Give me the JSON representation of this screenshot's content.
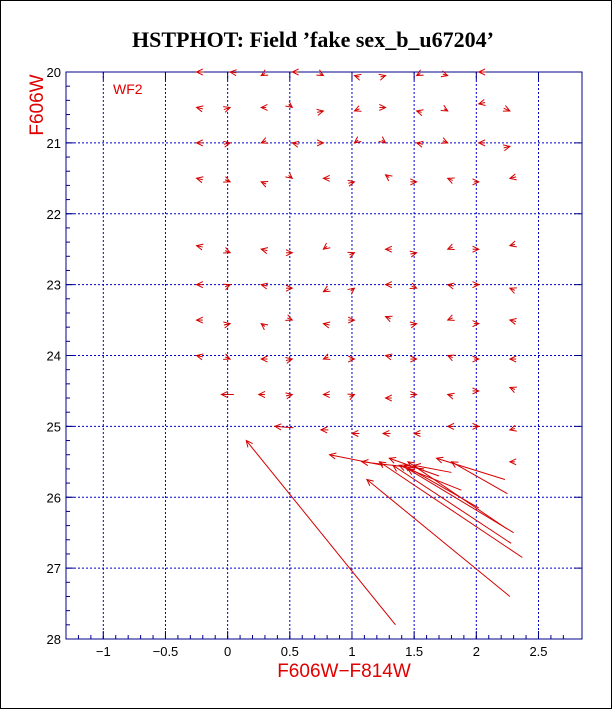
{
  "chart_data": {
    "type": "quiver",
    "title": "HSTPHOT: Field ’fake sex_b_u67204’",
    "xlabel": "F606W−F814W",
    "ylabel": "F606W",
    "panel_label": "WF2",
    "xlim": [
      -1.3,
      2.85
    ],
    "ylim": [
      28,
      20
    ],
    "y_inverted": true,
    "grid": true,
    "xticks": [
      -1,
      -0.5,
      0,
      0.5,
      1,
      1.5,
      2,
      2.5
    ],
    "xtick_labels": [
      "−1",
      "−0.5",
      "0",
      "0.5",
      "1",
      "1.5",
      "2",
      "2.5"
    ],
    "yticks": [
      20,
      21,
      22,
      23,
      24,
      25,
      26,
      27,
      28
    ],
    "ytick_labels": [
      "20",
      "21",
      "22",
      "23",
      "24",
      "25",
      "26",
      "27",
      "28"
    ],
    "colors": {
      "axes": "#00008b",
      "grid": "#0000cd",
      "labels": "#e00000",
      "vectors": "#d40000",
      "ticks": "#000000"
    },
    "vectors": [
      {
        "x": -0.25,
        "y": 20.0,
        "dx": 0.06,
        "dy": 0.0
      },
      {
        "x": 0.02,
        "y": 20.0,
        "dx": 0.05,
        "dy": 0.01
      },
      {
        "x": 0.27,
        "y": 20.05,
        "dx": 0.03,
        "dy": -0.03
      },
      {
        "x": 0.52,
        "y": 20.0,
        "dx": 0.05,
        "dy": 0.0
      },
      {
        "x": 0.77,
        "y": 20.05,
        "dx": -0.03,
        "dy": -0.03
      },
      {
        "x": 1.02,
        "y": 20.05,
        "dx": 0.04,
        "dy": 0.02
      },
      {
        "x": 1.27,
        "y": 20.05,
        "dx": -0.04,
        "dy": 0.02
      },
      {
        "x": 1.52,
        "y": 20.05,
        "dx": 0.03,
        "dy": -0.03
      },
      {
        "x": 1.77,
        "y": 20.05,
        "dx": -0.04,
        "dy": -0.02
      },
      {
        "x": 2.02,
        "y": 20.0,
        "dx": 0.06,
        "dy": 0.0
      },
      {
        "x": -0.25,
        "y": 20.5,
        "dx": 0.05,
        "dy": 0.02
      },
      {
        "x": 0.02,
        "y": 20.5,
        "dx": -0.05,
        "dy": 0.03
      },
      {
        "x": 0.27,
        "y": 20.5,
        "dx": 0.04,
        "dy": 0.0
      },
      {
        "x": 0.52,
        "y": 20.5,
        "dx": -0.03,
        "dy": -0.04
      },
      {
        "x": 0.77,
        "y": 20.55,
        "dx": -0.05,
        "dy": 0.02
      },
      {
        "x": 1.02,
        "y": 20.55,
        "dx": 0.04,
        "dy": -0.03
      },
      {
        "x": 1.27,
        "y": 20.5,
        "dx": -0.05,
        "dy": 0.0
      },
      {
        "x": 1.52,
        "y": 20.55,
        "dx": 0.04,
        "dy": 0.02
      },
      {
        "x": 1.77,
        "y": 20.55,
        "dx": -0.03,
        "dy": -0.03
      },
      {
        "x": 2.02,
        "y": 20.45,
        "dx": 0.05,
        "dy": -0.02
      },
      {
        "x": 2.27,
        "y": 20.55,
        "dx": -0.05,
        "dy": -0.04
      },
      {
        "x": -0.25,
        "y": 21.0,
        "dx": 0.05,
        "dy": 0.0
      },
      {
        "x": 0.02,
        "y": 21.0,
        "dx": -0.05,
        "dy": 0.02
      },
      {
        "x": 0.27,
        "y": 21.0,
        "dx": 0.04,
        "dy": -0.03
      },
      {
        "x": 0.52,
        "y": 21.0,
        "dx": 0.05,
        "dy": 0.02
      },
      {
        "x": 0.77,
        "y": 21.0,
        "dx": -0.05,
        "dy": 0.0
      },
      {
        "x": 1.02,
        "y": 21.0,
        "dx": 0.03,
        "dy": -0.04
      },
      {
        "x": 1.27,
        "y": 21.0,
        "dx": -0.03,
        "dy": -0.04
      },
      {
        "x": 1.52,
        "y": 21.0,
        "dx": 0.05,
        "dy": 0.02
      },
      {
        "x": 1.77,
        "y": 21.0,
        "dx": -0.04,
        "dy": -0.03
      },
      {
        "x": 2.02,
        "y": 21.0,
        "dx": 0.05,
        "dy": 0.0
      },
      {
        "x": 2.27,
        "y": 21.05,
        "dx": -0.05,
        "dy": 0.02
      },
      {
        "x": -0.25,
        "y": 21.5,
        "dx": 0.05,
        "dy": 0.02
      },
      {
        "x": 0.02,
        "y": 21.55,
        "dx": -0.04,
        "dy": -0.03
      },
      {
        "x": 0.27,
        "y": 21.55,
        "dx": 0.04,
        "dy": 0.03
      },
      {
        "x": 0.52,
        "y": 21.5,
        "dx": -0.03,
        "dy": -0.04
      },
      {
        "x": 0.77,
        "y": 21.5,
        "dx": 0.05,
        "dy": 0.0
      },
      {
        "x": 1.02,
        "y": 21.55,
        "dx": -0.05,
        "dy": 0.02
      },
      {
        "x": 1.27,
        "y": 21.45,
        "dx": 0.03,
        "dy": 0.04
      },
      {
        "x": 1.52,
        "y": 21.55,
        "dx": -0.05,
        "dy": 0.0
      },
      {
        "x": 1.77,
        "y": 21.5,
        "dx": 0.04,
        "dy": 0.03
      },
      {
        "x": 2.02,
        "y": 21.55,
        "dx": -0.04,
        "dy": 0.0
      },
      {
        "x": 2.27,
        "y": 21.5,
        "dx": 0.05,
        "dy": -0.02
      },
      {
        "x": -0.25,
        "y": 22.45,
        "dx": 0.05,
        "dy": 0.02
      },
      {
        "x": 0.02,
        "y": 22.55,
        "dx": -0.04,
        "dy": -0.03
      },
      {
        "x": 0.27,
        "y": 22.5,
        "dx": 0.05,
        "dy": 0.02
      },
      {
        "x": 0.52,
        "y": 22.55,
        "dx": -0.05,
        "dy": 0.0
      },
      {
        "x": 0.77,
        "y": 22.5,
        "dx": 0.03,
        "dy": -0.04
      },
      {
        "x": 1.02,
        "y": 22.55,
        "dx": -0.04,
        "dy": 0.03
      },
      {
        "x": 1.27,
        "y": 22.5,
        "dx": 0.05,
        "dy": 0.0
      },
      {
        "x": 1.52,
        "y": 22.55,
        "dx": -0.05,
        "dy": 0.02
      },
      {
        "x": 1.77,
        "y": 22.5,
        "dx": 0.04,
        "dy": -0.03
      },
      {
        "x": 2.02,
        "y": 22.5,
        "dx": -0.05,
        "dy": 0.0
      },
      {
        "x": 2.27,
        "y": 22.45,
        "dx": 0.04,
        "dy": -0.02
      },
      {
        "x": -0.25,
        "y": 23.0,
        "dx": 0.05,
        "dy": 0.0
      },
      {
        "x": 0.02,
        "y": 23.0,
        "dx": -0.04,
        "dy": 0.03
      },
      {
        "x": 0.27,
        "y": 23.0,
        "dx": 0.05,
        "dy": 0.02
      },
      {
        "x": 0.52,
        "y": 23.05,
        "dx": -0.05,
        "dy": 0.0
      },
      {
        "x": 0.77,
        "y": 23.1,
        "dx": 0.04,
        "dy": -0.04
      },
      {
        "x": 1.02,
        "y": 23.05,
        "dx": -0.03,
        "dy": 0.04
      },
      {
        "x": 1.27,
        "y": 23.0,
        "dx": 0.05,
        "dy": 0.0
      },
      {
        "x": 1.52,
        "y": 23.05,
        "dx": -0.04,
        "dy": -0.03
      },
      {
        "x": 1.77,
        "y": 23.0,
        "dx": 0.05,
        "dy": 0.02
      },
      {
        "x": 2.02,
        "y": 23.0,
        "dx": -0.04,
        "dy": 0.0
      },
      {
        "x": 2.27,
        "y": 23.05,
        "dx": 0.04,
        "dy": 0.03
      },
      {
        "x": -0.25,
        "y": 23.5,
        "dx": 0.05,
        "dy": 0.0
      },
      {
        "x": 0.02,
        "y": 23.55,
        "dx": -0.05,
        "dy": 0.02
      },
      {
        "x": 0.27,
        "y": 23.55,
        "dx": 0.03,
        "dy": 0.04
      },
      {
        "x": 0.52,
        "y": 23.5,
        "dx": -0.04,
        "dy": -0.03
      },
      {
        "x": 0.77,
        "y": 23.55,
        "dx": 0.05,
        "dy": 0.02
      },
      {
        "x": 1.02,
        "y": 23.5,
        "dx": -0.05,
        "dy": 0.0
      },
      {
        "x": 1.27,
        "y": 23.45,
        "dx": 0.04,
        "dy": 0.03
      },
      {
        "x": 1.52,
        "y": 23.55,
        "dx": -0.05,
        "dy": 0.02
      },
      {
        "x": 1.77,
        "y": 23.5,
        "dx": 0.04,
        "dy": -0.03
      },
      {
        "x": 2.02,
        "y": 23.55,
        "dx": -0.04,
        "dy": 0.0
      },
      {
        "x": 2.27,
        "y": 23.5,
        "dx": 0.05,
        "dy": 0.02
      },
      {
        "x": -0.25,
        "y": 24.0,
        "dx": 0.05,
        "dy": 0.02
      },
      {
        "x": 0.02,
        "y": 24.05,
        "dx": -0.04,
        "dy": -0.03
      },
      {
        "x": 0.27,
        "y": 24.05,
        "dx": 0.05,
        "dy": 0.0
      },
      {
        "x": 0.52,
        "y": 24.05,
        "dx": -0.05,
        "dy": 0.02
      },
      {
        "x": 0.77,
        "y": 24.05,
        "dx": 0.04,
        "dy": -0.03
      },
      {
        "x": 1.02,
        "y": 24.05,
        "dx": -0.04,
        "dy": 0.0
      },
      {
        "x": 1.27,
        "y": 24.0,
        "dx": 0.05,
        "dy": 0.02
      },
      {
        "x": 1.52,
        "y": 24.05,
        "dx": -0.05,
        "dy": 0.0
      },
      {
        "x": 1.77,
        "y": 24.0,
        "dx": 0.04,
        "dy": 0.03
      },
      {
        "x": 2.02,
        "y": 24.05,
        "dx": -0.04,
        "dy": 0.0
      },
      {
        "x": 2.27,
        "y": 24.05,
        "dx": 0.05,
        "dy": 0.0
      },
      {
        "x": -0.05,
        "y": 24.55,
        "dx": 0.1,
        "dy": 0.0
      },
      {
        "x": 0.25,
        "y": 24.55,
        "dx": 0.05,
        "dy": 0.0
      },
      {
        "x": 0.52,
        "y": 24.55,
        "dx": -0.05,
        "dy": 0.02
      },
      {
        "x": 0.77,
        "y": 24.55,
        "dx": 0.05,
        "dy": 0.0
      },
      {
        "x": 1.02,
        "y": 24.55,
        "dx": -0.04,
        "dy": 0.03
      },
      {
        "x": 1.27,
        "y": 24.6,
        "dx": 0.05,
        "dy": 0.0
      },
      {
        "x": 1.52,
        "y": 24.55,
        "dx": -0.05,
        "dy": 0.0
      },
      {
        "x": 1.77,
        "y": 24.55,
        "dx": 0.04,
        "dy": 0.02
      },
      {
        "x": 2.02,
        "y": 24.5,
        "dx": -0.05,
        "dy": 0.0
      },
      {
        "x": 2.27,
        "y": 24.45,
        "dx": 0.04,
        "dy": 0.03
      },
      {
        "x": 0.38,
        "y": 25.0,
        "dx": 0.15,
        "dy": 0.02
      },
      {
        "x": 0.75,
        "y": 25.05,
        "dx": 0.06,
        "dy": 0.0
      },
      {
        "x": 1.0,
        "y": 25.1,
        "dx": 0.06,
        "dy": 0.0
      },
      {
        "x": 1.25,
        "y": 25.1,
        "dx": 0.06,
        "dy": 0.0
      },
      {
        "x": 1.5,
        "y": 25.1,
        "dx": 0.05,
        "dy": 0.0
      },
      {
        "x": 1.77,
        "y": 25.0,
        "dx": 0.05,
        "dy": 0.0
      },
      {
        "x": 2.02,
        "y": 25.0,
        "dx": -0.05,
        "dy": 0.0
      },
      {
        "x": 2.27,
        "y": 25.05,
        "dx": 0.04,
        "dy": -0.02
      },
      {
        "x": 2.27,
        "y": 25.5,
        "dx": 0.04,
        "dy": 0.0
      },
      {
        "x": 0.15,
        "y": 25.2,
        "dx": 1.2,
        "dy": 2.6
      },
      {
        "x": 0.82,
        "y": 25.4,
        "dx": 0.43,
        "dy": 0.15
      },
      {
        "x": 1.08,
        "y": 25.5,
        "dx": 0.5,
        "dy": 0.1
      },
      {
        "x": 1.3,
        "y": 25.45,
        "dx": 0.4,
        "dy": 0.25
      },
      {
        "x": 1.38,
        "y": 25.55,
        "dx": 0.5,
        "dy": 0.35
      },
      {
        "x": 1.42,
        "y": 25.55,
        "dx": 0.6,
        "dy": 0.6
      },
      {
        "x": 1.45,
        "y": 25.6,
        "dx": 0.85,
        "dy": 0.9
      },
      {
        "x": 1.22,
        "y": 25.5,
        "dx": 1.15,
        "dy": 1.35
      },
      {
        "x": 1.33,
        "y": 25.55,
        "dx": 0.95,
        "dy": 1.1
      },
      {
        "x": 1.5,
        "y": 25.55,
        "dx": 0.3,
        "dy": 0.1
      },
      {
        "x": 1.68,
        "y": 25.45,
        "dx": 0.55,
        "dy": 0.3
      },
      {
        "x": 1.8,
        "y": 25.5,
        "dx": 0.45,
        "dy": 0.45
      },
      {
        "x": 1.12,
        "y": 25.75,
        "dx": 1.15,
        "dy": 1.65
      },
      {
        "x": 1.45,
        "y": 25.5,
        "dx": 0.8,
        "dy": 0.95
      }
    ]
  }
}
